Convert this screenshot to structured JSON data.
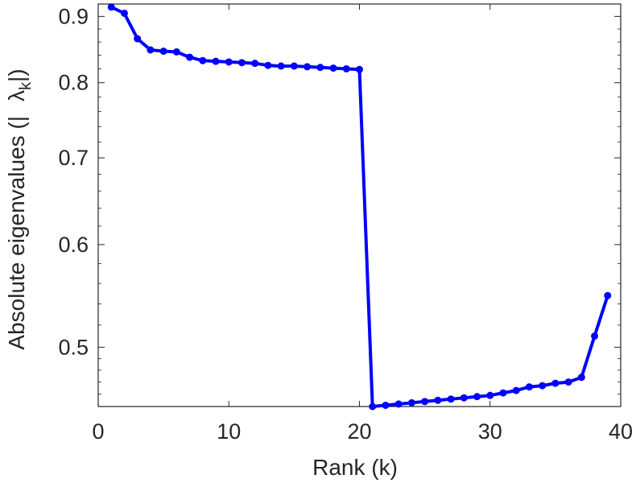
{
  "chart_data": {
    "type": "line",
    "xlabel": "Rank (k)",
    "ylabel": {
      "prefix": "Absolute eigenvalues (|",
      "symbol": "λ",
      "subscript": "k",
      "suffix": "|)"
    },
    "xlim": [
      0,
      40
    ],
    "ylim": [
      0.45,
      0.92
    ],
    "y_scale": "log",
    "xticks": [
      0,
      10,
      20,
      30,
      40
    ],
    "yticks": [
      0.5,
      0.6,
      0.7,
      0.8,
      0.9
    ],
    "grid": false,
    "line_color": "#0000ff",
    "series": [
      {
        "x": [
          1,
          2,
          3,
          4,
          5,
          6,
          7,
          8,
          9,
          10,
          11,
          12,
          13,
          14,
          15,
          16,
          17,
          18,
          19,
          20,
          21,
          22,
          23,
          24,
          25,
          26,
          27,
          28,
          29,
          30,
          31,
          32,
          33,
          34,
          35,
          36,
          37,
          38,
          39
        ],
        "values": [
          0.915,
          0.905,
          0.865,
          0.848,
          0.846,
          0.845,
          0.837,
          0.832,
          0.831,
          0.83,
          0.829,
          0.828,
          0.825,
          0.824,
          0.824,
          0.823,
          0.822,
          0.821,
          0.82,
          0.819,
          0.45,
          0.451,
          0.452,
          0.453,
          0.454,
          0.455,
          0.456,
          0.457,
          0.458,
          0.459,
          0.461,
          0.463,
          0.466,
          0.467,
          0.469,
          0.47,
          0.474,
          0.51,
          0.548
        ]
      }
    ]
  }
}
